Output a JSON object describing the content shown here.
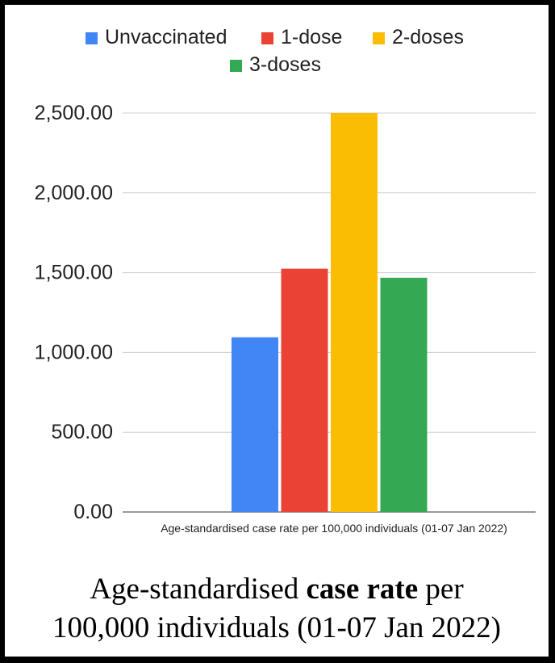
{
  "chart_data": {
    "type": "bar",
    "categories": [
      "Age-standardised case rate per 100,000 individuals (01-07 Jan 2022)"
    ],
    "series": [
      {
        "name": "Unvaccinated",
        "values": [
          1095
        ],
        "color": "#4285F4"
      },
      {
        "name": "1-dose",
        "values": [
          1525
        ],
        "color": "#EA4335"
      },
      {
        "name": "2-doses",
        "values": [
          2500
        ],
        "color": "#FBBC04"
      },
      {
        "name": "3-doses",
        "values": [
          1468
        ],
        "color": "#34A853"
      }
    ],
    "ylim": [
      0,
      2500
    ],
    "yticks": [
      "0.00",
      "500.00",
      "1,000.00",
      "1,500.00",
      "2,000.00",
      "2,500.00"
    ],
    "grid": true,
    "legend": "top"
  },
  "caption": {
    "part1": "Age-standardised ",
    "bold": "case rate",
    "part2": " per",
    "line2": "100,000 individuals (01-07 Jan 2022)"
  }
}
